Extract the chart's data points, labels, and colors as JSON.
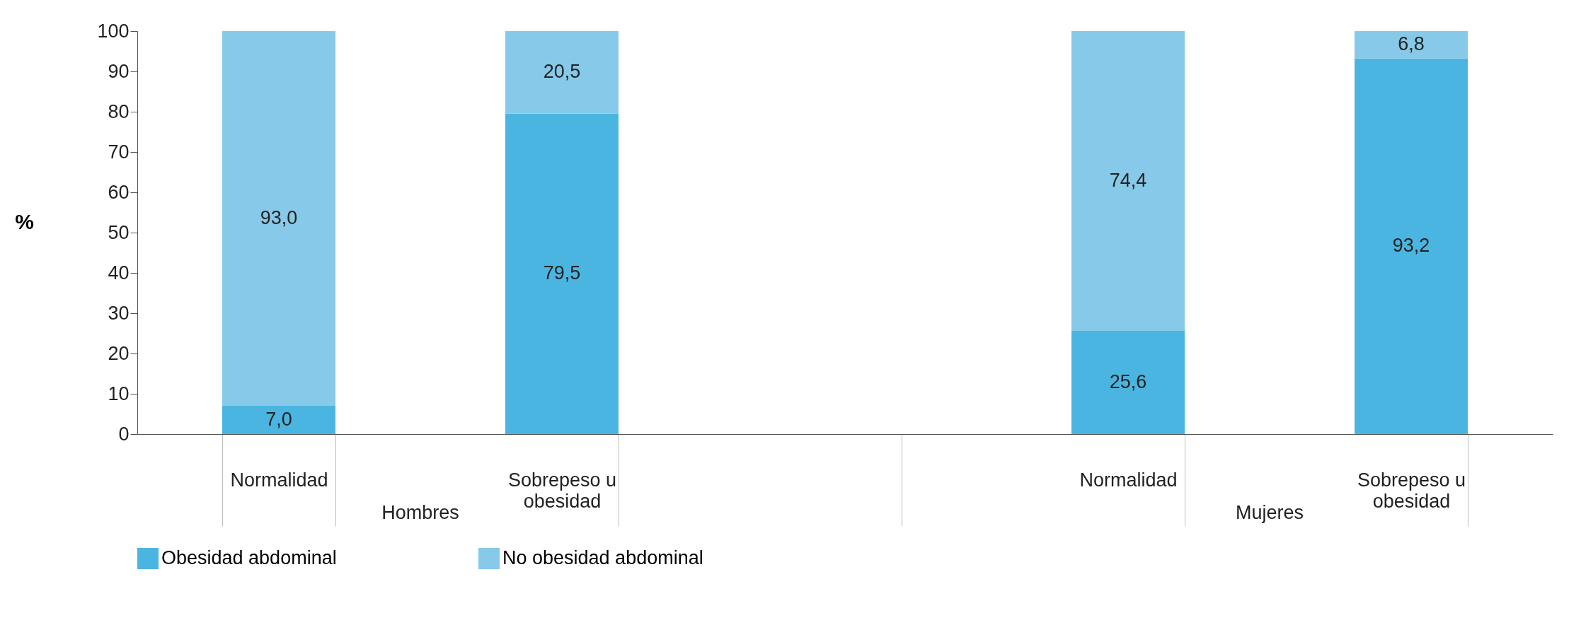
{
  "chart_data": {
    "type": "bar",
    "stacked": true,
    "ylabel": "%",
    "categories": [
      "Normalidad",
      "Sobrepeso u obesidad",
      null,
      "Normalidad",
      "Sobrepeso u obesidad"
    ],
    "series": [
      {
        "name": "Obesidad abdominal",
        "color": "#4ab5e0",
        "values": [
          7.0,
          79.5,
          null,
          25.6,
          93.2
        ],
        "value_labels": [
          "7,0",
          "79,5",
          null,
          "25,6",
          "93,2"
        ]
      },
      {
        "name": "No obesidad abdominal",
        "color": "#87c9e8",
        "values": [
          93.0,
          20.5,
          null,
          74.4,
          6.8
        ],
        "value_labels": [
          "93,0",
          "20,5",
          null,
          "74,4",
          "6,8"
        ]
      }
    ],
    "ylim": [
      0,
      100
    ],
    "yticks": [
      0,
      10,
      20,
      30,
      40,
      50,
      60,
      70,
      80,
      90,
      100
    ],
    "annotations": [
      "Hombres",
      "Mujeres"
    ],
    "grid": false,
    "legend": "bottom"
  }
}
